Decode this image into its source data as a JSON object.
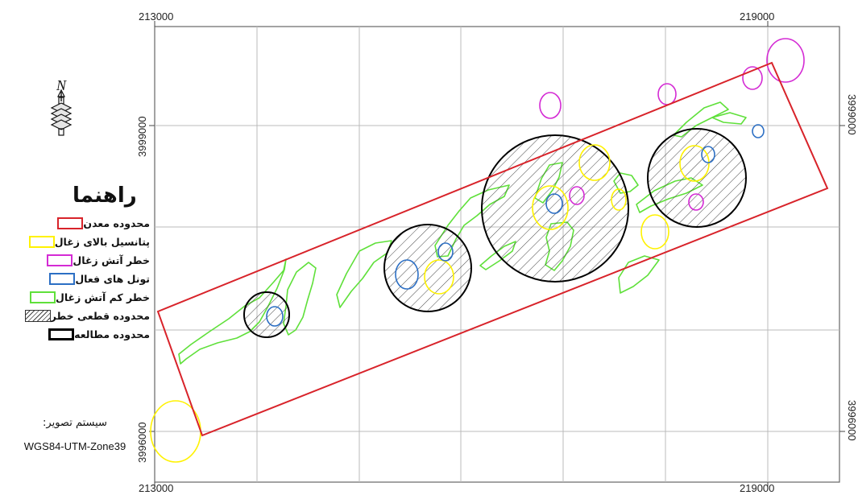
{
  "map": {
    "frame_color": "#666666",
    "grid_color": "#bbbbbb",
    "top_x_labels": [
      "213000",
      "219000"
    ],
    "bottom_x_labels": [
      "213000",
      "219000"
    ],
    "left_y_labels": [
      "3999000",
      "3996000"
    ],
    "right_y_labels": [
      "3999000",
      "3996000"
    ]
  },
  "north_arrow": {
    "letter": "N",
    "icon": "north-arrow-icon"
  },
  "legend": {
    "title": "راهنما",
    "items": [
      {
        "label": "محدوده معدن",
        "color": "#d8232a",
        "style": "rect"
      },
      {
        "label": "پتانسیل بالای زغال",
        "color": "#fff200",
        "style": "rect"
      },
      {
        "label": "خطر آتش زغال",
        "color": "#d42bd4",
        "style": "rect"
      },
      {
        "label": "تونل های فعال",
        "color": "#2c6fc4",
        "style": "rect"
      },
      {
        "label": "خطر کم آتش زغال",
        "color": "#5fe03a",
        "style": "rect"
      },
      {
        "label": "محدوده قطعی خطر",
        "color": "#333333",
        "style": "hatch"
      },
      {
        "label": "محدوده مطالعه",
        "color": "#000000",
        "style": "rect-bold"
      }
    ]
  },
  "projection": {
    "title": "سیستم تصویر:",
    "value": "WGS84-UTM-Zone39"
  },
  "colors": {
    "mine_boundary": "#d8232a",
    "high_potential": "#fff200",
    "fire_risk": "#d42bd4",
    "active_tunnel": "#2c6fc4",
    "low_fire_risk": "#5fe03a",
    "study_area": "#000000"
  }
}
